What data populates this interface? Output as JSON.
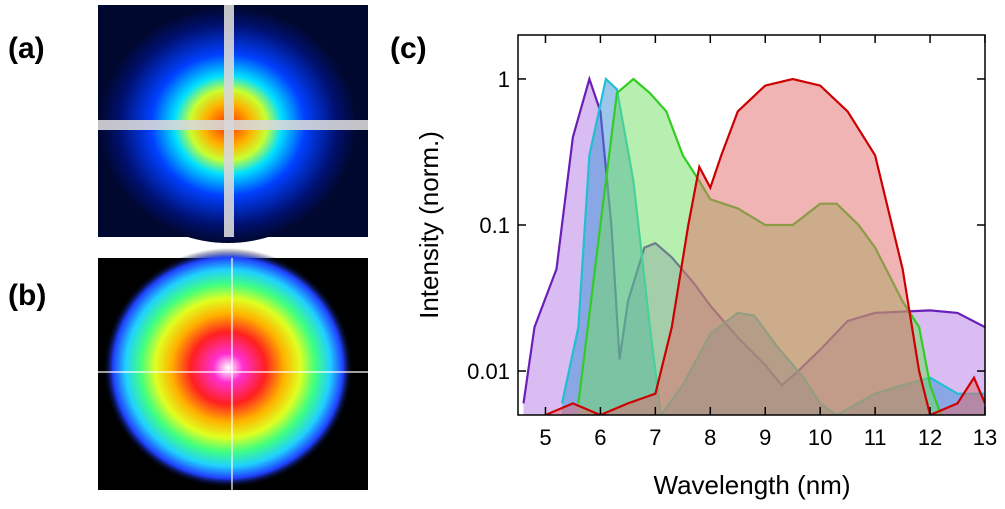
{
  "panel_labels": [
    "(a)",
    "(b)"
  ],
  "chart_data": {
    "type": "area",
    "panel_label": "(c)",
    "x_label": "Wavelength (nm)",
    "y_label": "Intensity (norm.)",
    "log_y": true,
    "xlim": [
      4.5,
      13
    ],
    "ylim": [
      0.005,
      2
    ],
    "xticks": [
      5,
      6,
      7,
      8,
      9,
      10,
      11,
      12,
      13
    ],
    "yticks": [
      0.01,
      0.1,
      1
    ],
    "series": [
      {
        "color": "#6a1fb8",
        "fill": "#b27ae6",
        "x": [
          4.6,
          4.8,
          5.2,
          5.5,
          5.8,
          6.0,
          6.2,
          6.35,
          6.5,
          6.8,
          7.0,
          7.3,
          7.7,
          8.0,
          8.5,
          9.0,
          9.3,
          9.6,
          10.0,
          10.5,
          11.0,
          12.0,
          12.5,
          13.0
        ],
        "values": [
          0.006,
          0.02,
          0.05,
          0.4,
          1,
          0.6,
          0.1,
          0.012,
          0.03,
          0.07,
          0.075,
          0.06,
          0.04,
          0.028,
          0.017,
          0.011,
          0.008,
          0.01,
          0.014,
          0.022,
          0.025,
          0.026,
          0.025,
          0.02
        ]
      },
      {
        "color": "#20c0d0",
        "fill": "#3a8fd8",
        "x": [
          5.3,
          5.6,
          5.8,
          6.1,
          6.3,
          6.6,
          6.9,
          7.1,
          7.5,
          8.0,
          8.5,
          8.8,
          9.2,
          9.7,
          10.0,
          10.3,
          11.0,
          11.5,
          12.0,
          12.5,
          13.0
        ],
        "values": [
          0.006,
          0.02,
          0.3,
          1,
          0.85,
          0.2,
          0.02,
          0.005,
          0.008,
          0.018,
          0.025,
          0.024,
          0.015,
          0.009,
          0.006,
          0.005,
          0.007,
          0.008,
          0.009,
          0.007,
          0.007
        ]
      },
      {
        "color": "#33cc22",
        "fill": "#6ee060",
        "x": [
          5.6,
          6.0,
          6.3,
          6.6,
          6.9,
          7.2,
          7.5,
          7.8,
          8.0,
          8.5,
          9.0,
          9.5,
          10.0,
          10.3,
          10.7,
          11.0,
          11.5,
          11.8,
          12.0,
          12.2
        ],
        "values": [
          0.006,
          0.1,
          0.8,
          1,
          0.8,
          0.6,
          0.3,
          0.2,
          0.15,
          0.13,
          0.1,
          0.1,
          0.14,
          0.14,
          0.1,
          0.07,
          0.03,
          0.02,
          0.008,
          0.005
        ]
      },
      {
        "color": "#cc0000",
        "fill": "#e36a6a",
        "x": [
          5.0,
          5.5,
          6.0,
          6.5,
          7.0,
          7.3,
          7.6,
          7.8,
          8.0,
          8.2,
          8.5,
          9.0,
          9.5,
          10.0,
          10.5,
          11.0,
          11.5,
          11.8,
          12.0,
          12.5,
          12.8,
          13.0
        ],
        "values": [
          0.005,
          0.006,
          0.005,
          0.006,
          0.007,
          0.02,
          0.1,
          0.25,
          0.18,
          0.3,
          0.6,
          0.9,
          1,
          0.9,
          0.6,
          0.3,
          0.05,
          0.01,
          0.005,
          0.006,
          0.009,
          0.006
        ]
      }
    ]
  }
}
